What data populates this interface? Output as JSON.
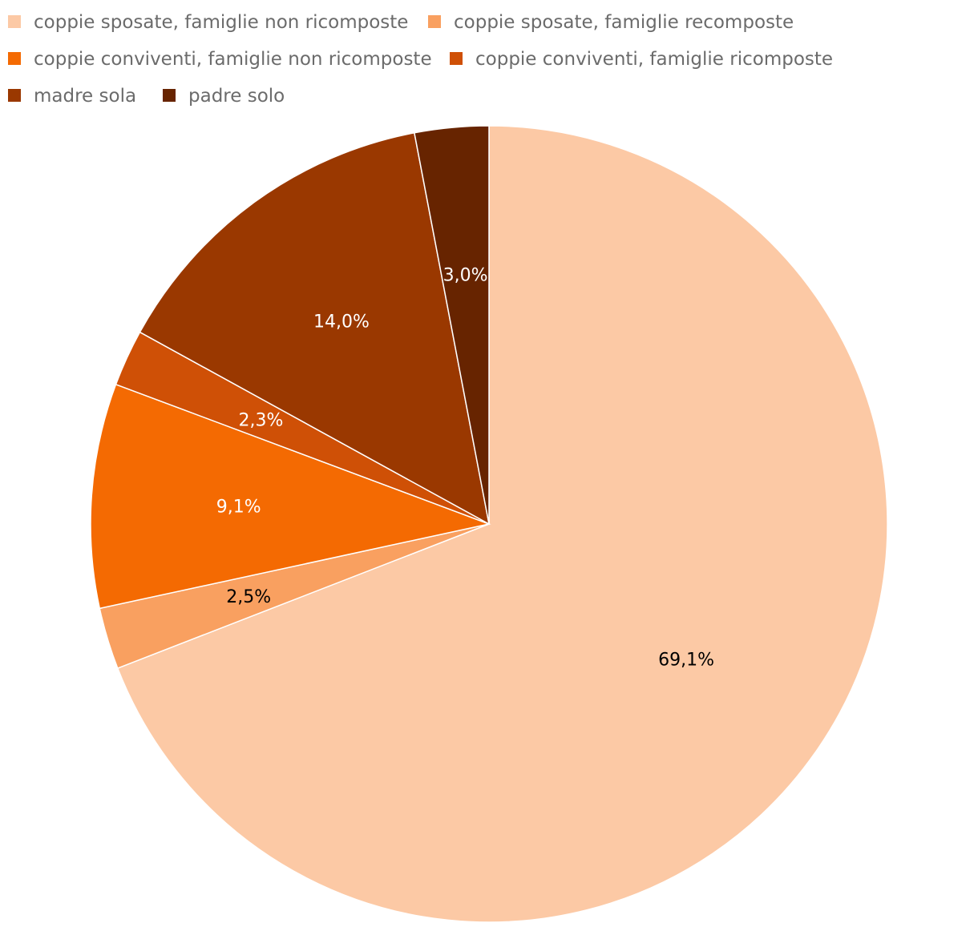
{
  "chart_data": {
    "type": "pie",
    "title": "",
    "legend_position": "top-left",
    "slices": [
      {
        "name": "coppie sposate, famiglie non ricomposte",
        "value": 69.1,
        "label": "69,1%",
        "color": "#FCC9A5",
        "label_color": "#000000"
      },
      {
        "name": "coppie sposate, famiglie recomposte",
        "value": 2.5,
        "label": "2,5%",
        "color": "#F9A060",
        "label_color": "#000000"
      },
      {
        "name": "coppie conviventi, famiglie non ricomposte",
        "value": 9.1,
        "label": "9,1%",
        "color": "#F46A02",
        "label_color": "#ffffff"
      },
      {
        "name": "coppie conviventi, famiglie ricomposte",
        "value": 2.3,
        "label": "2,3%",
        "color": "#CF5006",
        "label_color": "#ffffff"
      },
      {
        "name": "madre sola",
        "value": 14.0,
        "label": "14,0%",
        "color": "#9A3800",
        "label_color": "#ffffff"
      },
      {
        "name": "padre solo",
        "value": 3.0,
        "label": "3,0%",
        "color": "#672400",
        "label_color": "#ffffff"
      }
    ]
  }
}
